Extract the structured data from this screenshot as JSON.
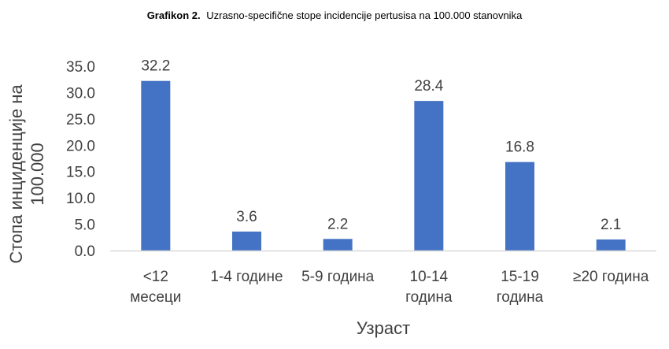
{
  "chart_data": {
    "type": "bar",
    "title_prefix": "Grafikon 2.",
    "title": "Uzrasno-specifične stope incidencije pertusisa na 100.000 stanovnika",
    "xlabel": "Узраст",
    "ylabel_lines": [
      "Стопа инциденције на",
      "100.000"
    ],
    "categories": [
      [
        "<12",
        "месеци"
      ],
      [
        "1-4 године"
      ],
      [
        "5-9  година"
      ],
      [
        "10-14",
        "година"
      ],
      [
        "15-19",
        "година"
      ],
      [
        "≥20 година"
      ]
    ],
    "values": [
      32.2,
      3.6,
      2.2,
      28.4,
      16.8,
      2.1
    ],
    "data_labels": [
      "32.2",
      "3.6",
      "2.2",
      "28.4",
      "16.8",
      "2.1"
    ],
    "yticks": [
      "0.0",
      "5.0",
      "10.0",
      "15.0",
      "20.0",
      "25.0",
      "30.0",
      "35.0"
    ],
    "ylim": [
      0,
      35
    ],
    "grid": false,
    "bar_color": "#4472C4",
    "axis_color": "#D9D9D9"
  }
}
